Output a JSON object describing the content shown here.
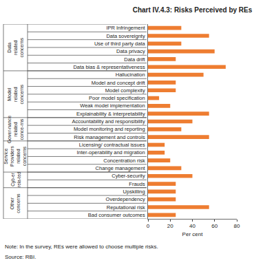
{
  "chart_data": {
    "type": "bar",
    "orientation": "horizontal",
    "title": "Chart IV.4.3: Risks Perceived by REs",
    "xlabel": "Per cent",
    "note": "Note: In the survey, REs were allowed to choose multiple risks.",
    "source": "Source: RBI.",
    "categories": [
      "IPR Infringement",
      "Data sovereignty",
      "Use of third party data",
      "Data privacy",
      "Data drift",
      "Data bias & representativeness",
      "Hallucination",
      "Model and concept drift",
      "Model complexity",
      "Poor model specification",
      "Weak model implementation",
      "Explainability & interpretability",
      "Accountability and responsibility",
      "Model monitoring and reporting",
      "Risk management and controls",
      "Licensing/ contractual issues",
      "Inter-operability and migration",
      "Concentration risk",
      "Change management",
      "Cyber-security",
      "Frauds",
      "Upskilling",
      "Overdependency",
      "Reputational risk",
      "Bad consumer outcomes"
    ],
    "values": [
      30,
      55,
      30,
      60,
      25,
      70,
      50,
      25,
      25,
      10,
      20,
      55,
      40,
      30,
      55,
      15,
      15,
      20,
      30,
      40,
      25,
      25,
      25,
      55,
      25
    ],
    "color": "#ee7d31",
    "xlim": [
      0,
      80
    ],
    "xticks": [
      0,
      20,
      40,
      60,
      80
    ],
    "grid": false,
    "groups": [
      {
        "label": [
          "Data",
          "related",
          "concerns"
        ],
        "from": "IPR Infringement",
        "to": "Data bias & representativeness"
      },
      {
        "label": [
          "Model",
          "related",
          "concerns"
        ],
        "from": "Hallucination",
        "to": "Explainability & interpretability"
      },
      {
        "label": [
          "Gover-nance",
          "related",
          "conce-rns"
        ],
        "from": "Accountability and responsibility",
        "to": "Risk management and controls"
      },
      {
        "label": [
          "Service",
          "Providers",
          "related",
          "concerns"
        ],
        "from": "Licensing/ contractual issues",
        "to": "Change management"
      },
      {
        "label": [
          "Cyb-er",
          "rela-ted"
        ],
        "from": "Cyber-security",
        "to": "Frauds"
      },
      {
        "label": [
          "Other",
          "concerns"
        ],
        "from": "Upskilling",
        "to": "Bad consumer outcomes"
      }
    ]
  }
}
